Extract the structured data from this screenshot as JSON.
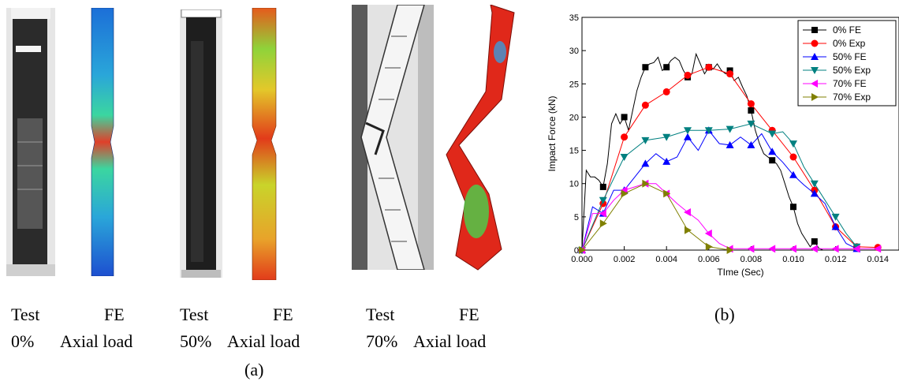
{
  "panel_a": {
    "groups": [
      {
        "test": "Test",
        "fe": "FE",
        "pct": "0%",
        "load": "Axial load"
      },
      {
        "test": "Test",
        "fe": "FE",
        "pct": "50%",
        "load": "Axial load"
      },
      {
        "test": "Test",
        "fe": "FE",
        "pct": "70%",
        "load": "Axial load"
      }
    ],
    "caption": "(a)"
  },
  "panel_b": {
    "caption": "(b)"
  },
  "chart_data": {
    "type": "line",
    "title": "",
    "xlabel": "TIme (Sec)",
    "ylabel": "Impact Force (kN)",
    "xlim": [
      0,
      0.015
    ],
    "ylim": [
      0,
      35
    ],
    "xticks": [
      "0.000",
      "0.002",
      "0.004",
      "0.006",
      "0.008",
      "0.010",
      "0.012",
      "0.014"
    ],
    "yticks": [
      "0",
      "5",
      "10",
      "15",
      "20",
      "25",
      "30",
      "35"
    ],
    "legend_position": "top-right",
    "series": [
      {
        "name": "0% FE",
        "color": "#000000",
        "marker": "square",
        "x": [
          0,
          0.0002,
          0.0004,
          0.0006,
          0.0008,
          0.001,
          0.0012,
          0.0014,
          0.0016,
          0.0018,
          0.002,
          0.0022,
          0.0024,
          0.0026,
          0.0028,
          0.003,
          0.0032,
          0.0034,
          0.0036,
          0.0038,
          0.004,
          0.0042,
          0.0044,
          0.0046,
          0.0048,
          0.005,
          0.0052,
          0.0054,
          0.0056,
          0.0058,
          0.006,
          0.0062,
          0.0064,
          0.0066,
          0.0068,
          0.007,
          0.0072,
          0.0074,
          0.0076,
          0.0078,
          0.008,
          0.0082,
          0.0084,
          0.0086,
          0.0088,
          0.009,
          0.0092,
          0.0094,
          0.0096,
          0.0098,
          0.01,
          0.0102,
          0.0104,
          0.0106,
          0.0108,
          0.011,
          0.0112,
          0.0114,
          0.0116
        ],
        "y": [
          0,
          12,
          11,
          11,
          10.5,
          9.5,
          13,
          19,
          20.5,
          19,
          20,
          18,
          21,
          24,
          26,
          27.5,
          28,
          28.2,
          29,
          27,
          27.5,
          28.5,
          29,
          28.5,
          27,
          26,
          26.5,
          29.5,
          28,
          26.5,
          27.5,
          27.2,
          28,
          27,
          26.5,
          27,
          25.5,
          26,
          24.5,
          23.2,
          21,
          18,
          16,
          14.5,
          14,
          13.5,
          13,
          12,
          10,
          8,
          6.5,
          4,
          2.5,
          1.5,
          0.5,
          1.3,
          0.3,
          0,
          0
        ]
      },
      {
        "name": "0% Exp",
        "color": "#ff0000",
        "marker": "circle",
        "x": [
          0,
          0.001,
          0.002,
          0.003,
          0.004,
          0.005,
          0.006,
          0.007,
          0.008,
          0.009,
          0.01,
          0.011,
          0.012,
          0.013,
          0.014
        ],
        "y": [
          0,
          7,
          17,
          21.8,
          23.8,
          26.3,
          27.5,
          26.5,
          22,
          18,
          14,
          9,
          3.5,
          0.5,
          0.4
        ]
      },
      {
        "name": "50% FE",
        "color": "#0000ff",
        "marker": "triangle-up",
        "x": [
          0,
          0.0005,
          0.001,
          0.0015,
          0.002,
          0.0025,
          0.003,
          0.0035,
          0.004,
          0.0045,
          0.005,
          0.0055,
          0.006,
          0.0065,
          0.007,
          0.0075,
          0.008,
          0.0085,
          0.009,
          0.0095,
          0.01,
          0.0105,
          0.011,
          0.0115,
          0.012,
          0.0125,
          0.013
        ],
        "y": [
          0,
          6.5,
          5.5,
          9,
          9,
          11,
          13,
          14.5,
          13.3,
          14,
          17,
          15,
          18,
          16,
          15.8,
          17,
          15.8,
          17.5,
          14.8,
          13.2,
          11.3,
          9.8,
          8.5,
          7,
          3.5,
          1,
          0.2
        ]
      },
      {
        "name": "50% Exp",
        "color": "#008080",
        "marker": "triangle-down",
        "x": [
          0,
          0.001,
          0.002,
          0.003,
          0.004,
          0.005,
          0.006,
          0.007,
          0.008,
          0.009,
          0.0095,
          0.01,
          0.0105,
          0.011,
          0.0115,
          0.012,
          0.0125,
          0.013
        ],
        "y": [
          0,
          7.5,
          14,
          16.5,
          17,
          18,
          18,
          18.2,
          19,
          17.5,
          17.8,
          16,
          12.5,
          10,
          7.5,
          5,
          2.5,
          0.5
        ]
      },
      {
        "name": "70% FE",
        "color": "#ff00ff",
        "marker": "triangle-left",
        "x": [
          0,
          0.0005,
          0.001,
          0.0015,
          0.002,
          0.0025,
          0.003,
          0.0035,
          0.004,
          0.0045,
          0.005,
          0.0055,
          0.006,
          0.0065,
          0.007,
          0.008,
          0.009,
          0.01,
          0.011,
          0.012,
          0.013,
          0.014
        ],
        "y": [
          0,
          5.5,
          5.5,
          7.5,
          9,
          9.5,
          10,
          10,
          8.5,
          7,
          5.7,
          4.5,
          2.5,
          1,
          0.2,
          0.2,
          0.2,
          0.2,
          0.2,
          0.2,
          0.2,
          0.2
        ]
      },
      {
        "name": "70% Exp",
        "color": "#808000",
        "marker": "triangle-right",
        "x": [
          0,
          0.001,
          0.002,
          0.003,
          0.004,
          0.005,
          0.006,
          0.007
        ],
        "y": [
          0,
          4,
          8.5,
          10,
          8.5,
          3,
          0.5,
          0
        ]
      }
    ]
  }
}
